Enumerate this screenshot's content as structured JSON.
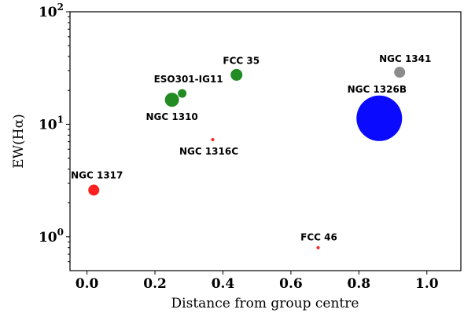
{
  "chart_data": {
    "type": "scatter",
    "title": "",
    "xlabel": "Distance from group centre",
    "ylabel": "EW(Hα)",
    "xlim": [
      -0.05,
      1.1
    ],
    "ylim": [
      0.5,
      100
    ],
    "yscale": "log",
    "grid": false,
    "x_ticks": [
      {
        "value": 0.0,
        "label": "0.0"
      },
      {
        "value": 0.2,
        "label": "0.2"
      },
      {
        "value": 0.4,
        "label": "0.4"
      },
      {
        "value": 0.6,
        "label": "0.6"
      },
      {
        "value": 0.8,
        "label": "0.8"
      },
      {
        "value": 1.0,
        "label": "1.0"
      }
    ],
    "y_ticks": [
      {
        "value": 1,
        "base": "10",
        "exp": "0"
      },
      {
        "value": 10,
        "base": "10",
        "exp": "1"
      },
      {
        "value": 100,
        "base": "10",
        "exp": "2"
      }
    ],
    "points": [
      {
        "label": "NGC 1317",
        "x": 0.02,
        "y": 2.6,
        "size": 7,
        "color": "#ff2020"
      },
      {
        "label": "NGC 1310",
        "x": 0.25,
        "y": 16.5,
        "size": 9,
        "color": "#228b22"
      },
      {
        "label": "ESO301-IG11",
        "x": 0.28,
        "y": 18.8,
        "size": 5.5,
        "color": "#228b22"
      },
      {
        "label": "FCC 35",
        "x": 0.44,
        "y": 27.5,
        "size": 7.5,
        "color": "#228b22"
      },
      {
        "label": "NGC 1316C",
        "x": 0.37,
        "y": 7.3,
        "size": 2,
        "color": "#ff2020"
      },
      {
        "label": "FCC 46",
        "x": 0.68,
        "y": 0.8,
        "size": 2,
        "color": "#ff2020"
      },
      {
        "label": "NGC 1326B",
        "x": 0.86,
        "y": 11.3,
        "size": 29,
        "color": "#0a0aff"
      },
      {
        "label": "NGC 1341",
        "x": 0.92,
        "y": 29.0,
        "size": 7,
        "color": "#8c8c8c"
      }
    ]
  }
}
